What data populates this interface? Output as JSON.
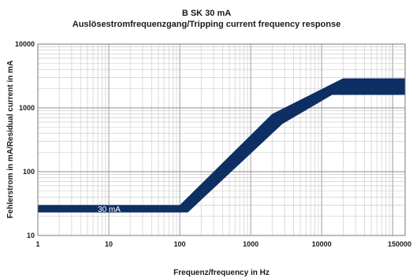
{
  "chart_data": {
    "type": "area",
    "title": "B SK 30 mA",
    "subtitle": "Auslösestromfrequenzgang/Tripping current frequency response",
    "xlabel": "Frequenz/frequency in Hz",
    "ylabel": "Fehlerstrom in mA/Residual current in mA",
    "x_scale": "log",
    "y_scale": "log",
    "xlim": [
      1,
      150000
    ],
    "ylim": [
      10,
      10000
    ],
    "grid": true,
    "x_ticks": [
      {
        "value": 1,
        "label": "1"
      },
      {
        "value": 10,
        "label": "10"
      },
      {
        "value": 100,
        "label": "100"
      },
      {
        "value": 1000,
        "label": "1000"
      },
      {
        "value": 10000,
        "label": "10000"
      },
      {
        "value": 150000,
        "label": "150000"
      }
    ],
    "y_ticks": [
      {
        "value": 10,
        "label": "10"
      },
      {
        "value": 100,
        "label": "100"
      },
      {
        "value": 1000,
        "label": "1000"
      },
      {
        "value": 10000,
        "label": "10000"
      }
    ],
    "band_color": "#0e2f63",
    "band": {
      "upper": [
        [
          1,
          30
        ],
        [
          100,
          30
        ],
        [
          2000,
          800
        ],
        [
          20000,
          2900
        ],
        [
          150000,
          2900
        ]
      ],
      "lower": [
        [
          1,
          23
        ],
        [
          130,
          23
        ],
        [
          2800,
          560
        ],
        [
          14000,
          1600
        ],
        [
          150000,
          1600
        ]
      ]
    },
    "annotation": {
      "text": "30 mA",
      "x": 7,
      "y": 26
    }
  }
}
